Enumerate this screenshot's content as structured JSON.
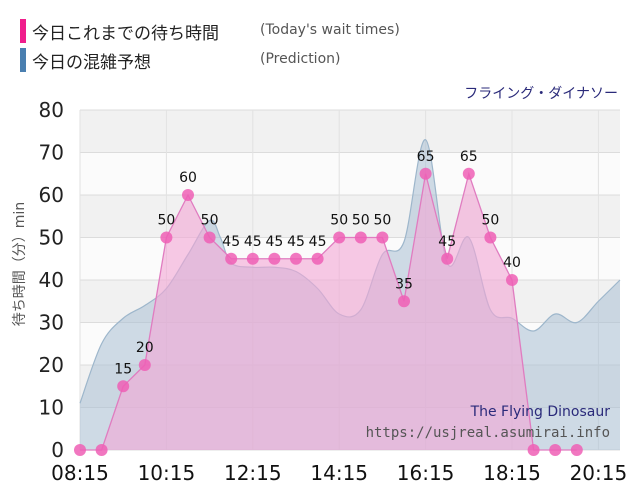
{
  "legend": {
    "today_label": "今日これまでの待ち時間",
    "today_sub": "(Today's wait times)",
    "prediction_label": "今日の混雑予想",
    "prediction_sub": "(Prediction)"
  },
  "attraction_name": "フライング・ダイナソー",
  "watermark": {
    "title": "The Flying Dinosaur",
    "url": "https://usjreal.asumirai.info"
  },
  "colors": {
    "today": "#f01e8c",
    "today_fill": "#f3a6d6",
    "prediction": "#4a7fb0",
    "prediction_fill": "#a9c0d3"
  },
  "chart_data": {
    "type": "area",
    "ylabel": "待ち時間（分）min",
    "ylim": [
      0,
      80
    ],
    "yticks": [
      0,
      10,
      20,
      30,
      40,
      50,
      60,
      70,
      80
    ],
    "xticks": [
      "08:15",
      "10:15",
      "12:15",
      "14:15",
      "16:15",
      "18:15",
      "20:15"
    ],
    "grid": true,
    "series": [
      {
        "name": "今日これまでの待ち時間",
        "x": [
          "08:15",
          "08:45",
          "09:15",
          "09:45",
          "10:15",
          "10:45",
          "11:15",
          "11:45",
          "12:15",
          "12:45",
          "13:15",
          "13:45",
          "14:15",
          "14:45",
          "15:15",
          "15:45",
          "16:15",
          "16:45",
          "17:15",
          "17:45",
          "18:15",
          "18:45",
          "19:15",
          "19:45"
        ],
        "values": [
          0,
          0,
          15,
          20,
          50,
          60,
          50,
          45,
          45,
          45,
          45,
          45,
          50,
          50,
          50,
          35,
          65,
          45,
          65,
          50,
          40,
          0,
          0,
          0
        ],
        "data_labels": [
          "",
          "",
          "15",
          "20",
          "50",
          "60",
          "50",
          "45",
          "45",
          "45",
          "45",
          "45",
          "50",
          "50",
          "50",
          "35",
          "65",
          "45",
          "65",
          "50",
          "40",
          "",
          "",
          ""
        ]
      },
      {
        "name": "今日の混雑予想",
        "x": [
          "08:15",
          "08:45",
          "09:15",
          "09:45",
          "10:15",
          "10:45",
          "11:15",
          "11:30",
          "11:45",
          "12:15",
          "12:45",
          "13:15",
          "13:45",
          "14:15",
          "14:45",
          "15:15",
          "15:45",
          "16:15",
          "16:45",
          "17:15",
          "17:45",
          "18:15",
          "18:45",
          "19:15",
          "19:45",
          "20:15",
          "20:45"
        ],
        "values": [
          11,
          25,
          31,
          34,
          38,
          46,
          54,
          50,
          44,
          43,
          43,
          42,
          38,
          32,
          33,
          46,
          49,
          73,
          44,
          50,
          33,
          31,
          28,
          32,
          30,
          35,
          40
        ]
      }
    ]
  }
}
